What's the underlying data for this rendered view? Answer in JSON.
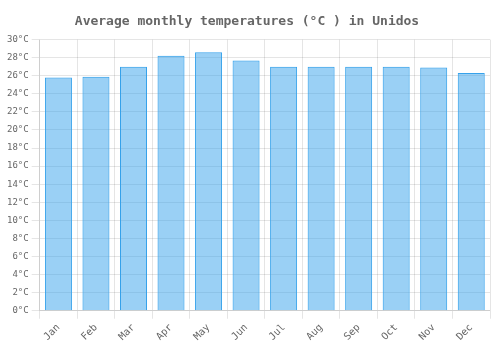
{
  "chart_data": {
    "type": "bar",
    "title": "Average monthly temperatures (°C ) in Unidos",
    "categories": [
      "Jan",
      "Feb",
      "Mar",
      "Apr",
      "May",
      "Jun",
      "Jul",
      "Aug",
      "Sep",
      "Oct",
      "Nov",
      "Dec"
    ],
    "values": [
      25.8,
      25.9,
      27.0,
      28.2,
      28.6,
      27.7,
      27.0,
      27.0,
      27.0,
      27.0,
      26.9,
      26.3
    ],
    "ylim": [
      0,
      30
    ],
    "yticks": [
      {
        "value": 0,
        "label": "0°C"
      },
      {
        "value": 2,
        "label": "2°C"
      },
      {
        "value": 4,
        "label": "4°C"
      },
      {
        "value": 6,
        "label": "6°C"
      },
      {
        "value": 8,
        "label": "8°C"
      },
      {
        "value": 10,
        "label": "10°C"
      },
      {
        "value": 12,
        "label": "12°C"
      },
      {
        "value": 14,
        "label": "14°C"
      },
      {
        "value": 16,
        "label": "16°C"
      },
      {
        "value": 18,
        "label": "18°C"
      },
      {
        "value": 20,
        "label": "20°C"
      },
      {
        "value": 22,
        "label": "22°C"
      },
      {
        "value": 24,
        "label": "24°C"
      },
      {
        "value": 26,
        "label": "26°C"
      },
      {
        "value": 28,
        "label": "28°C"
      },
      {
        "value": 30,
        "label": "30°C"
      }
    ],
    "grid": true
  }
}
